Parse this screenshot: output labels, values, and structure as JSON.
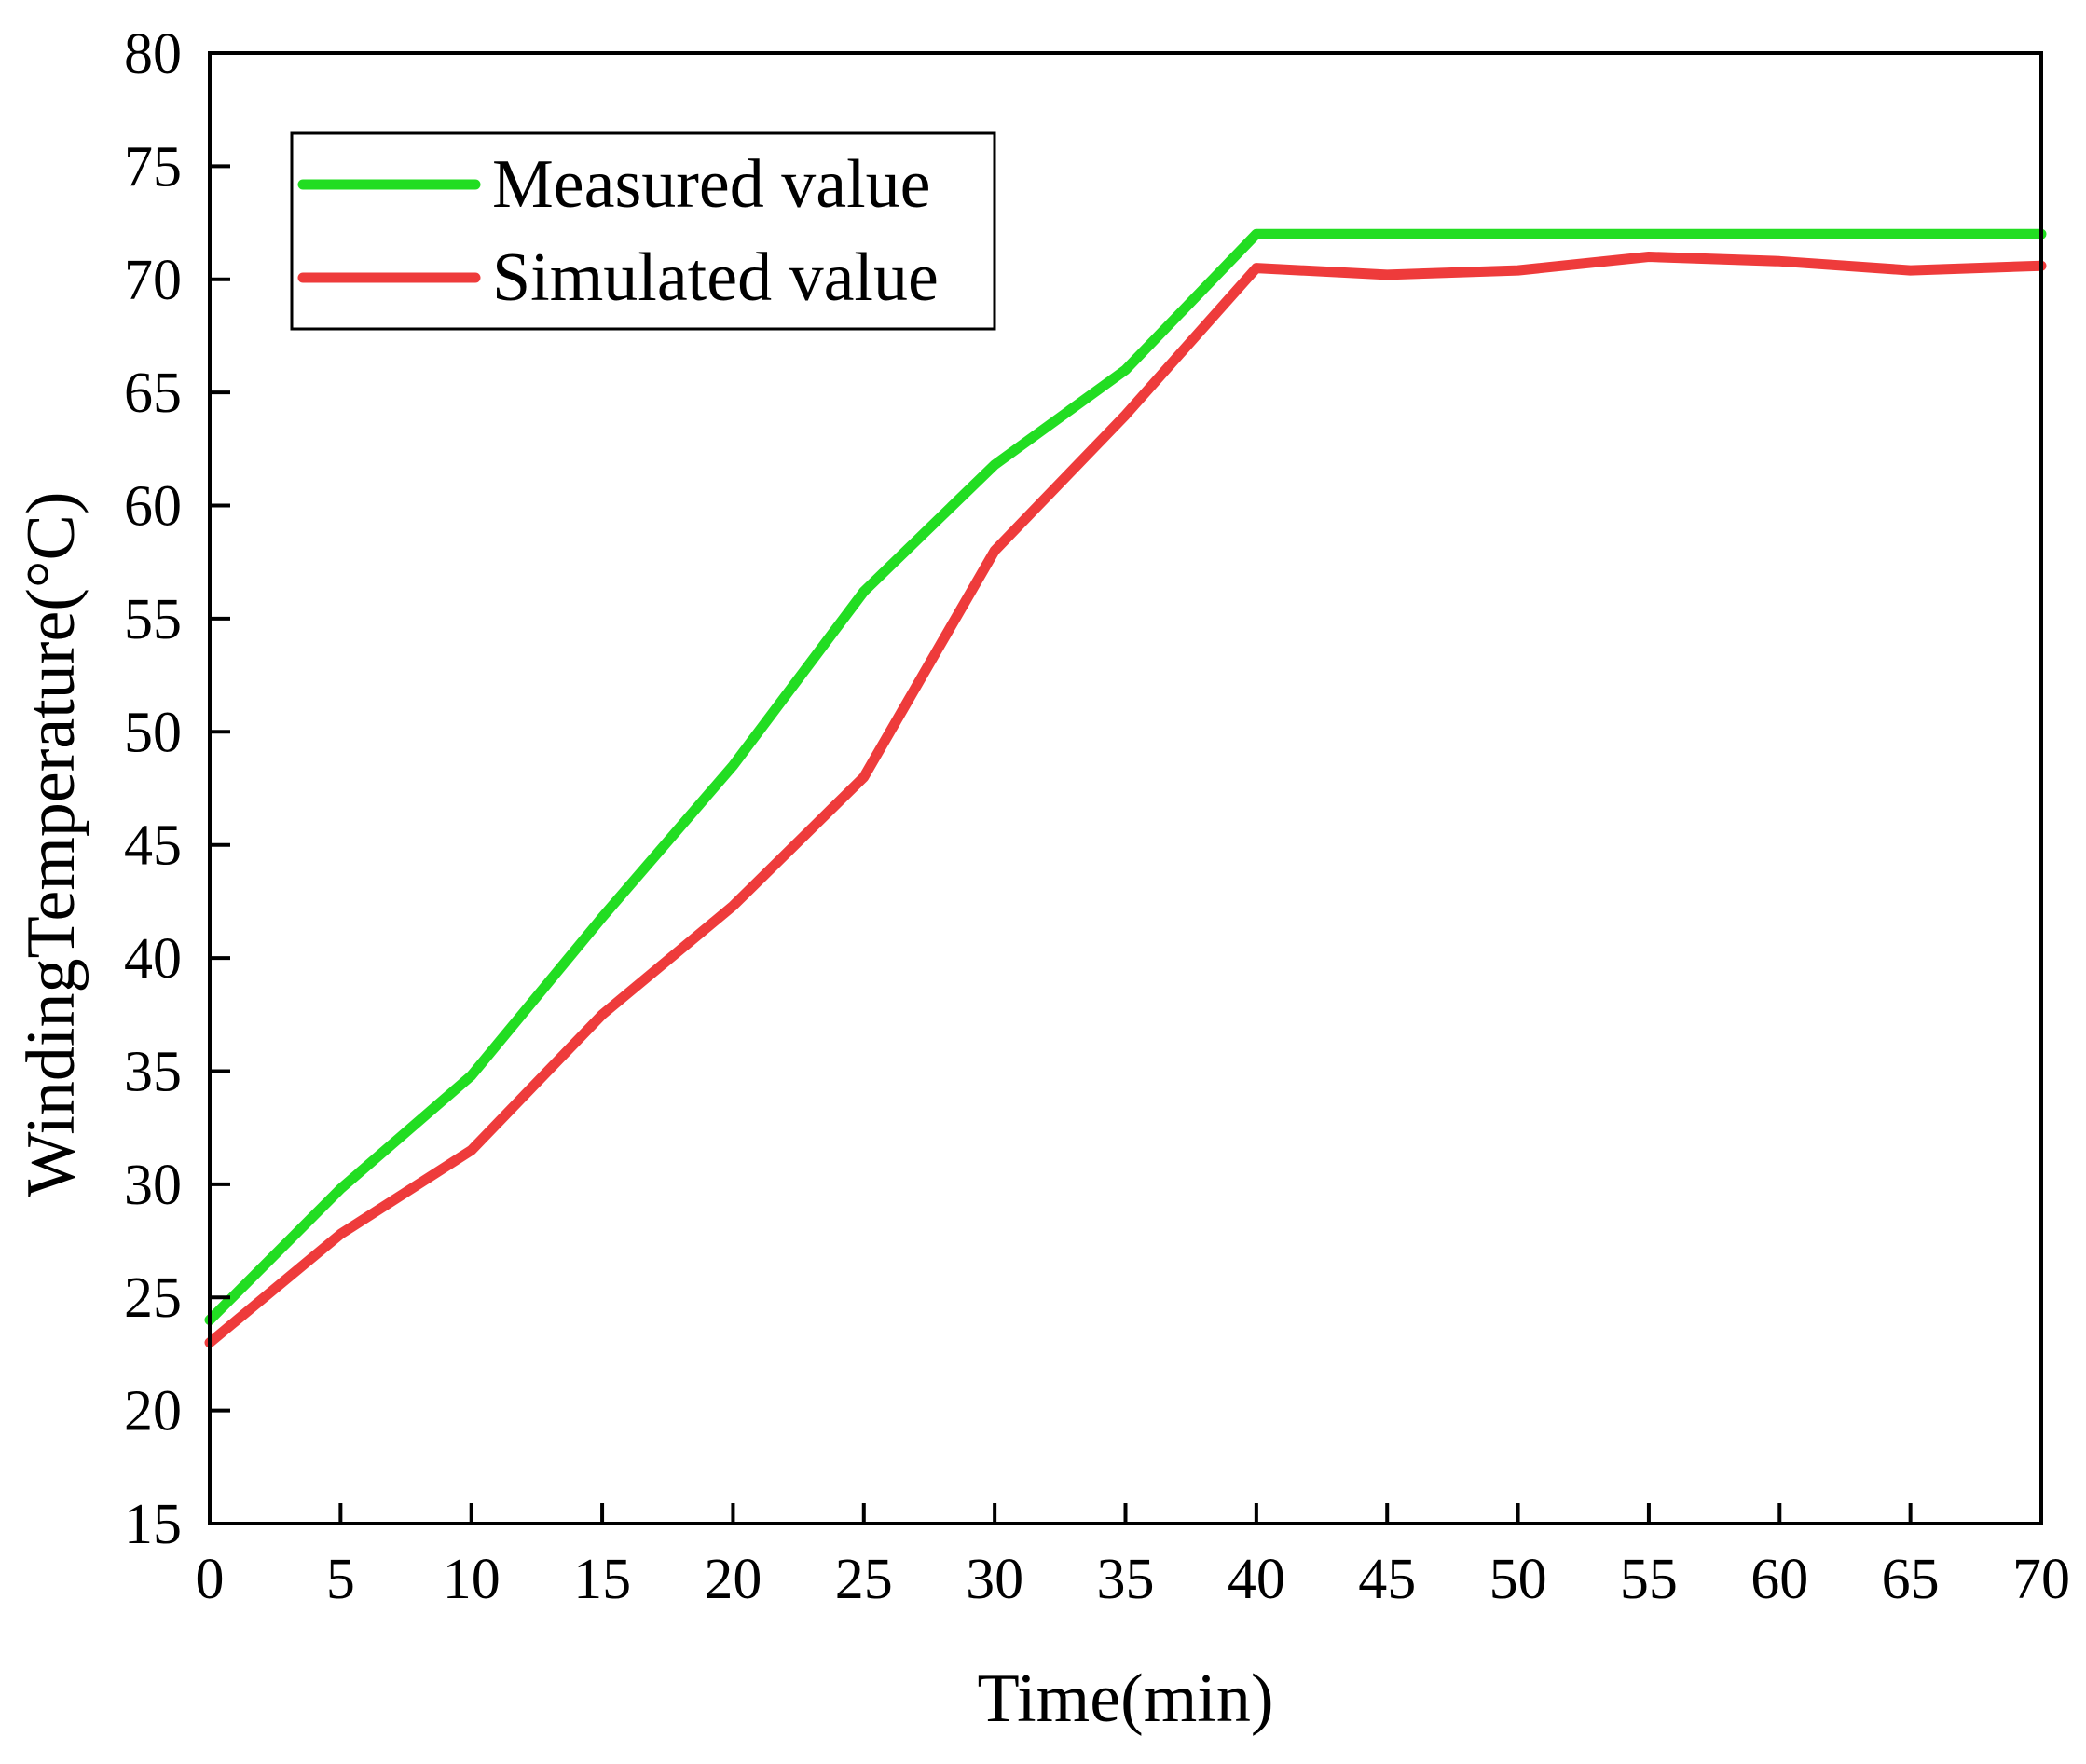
{
  "chart_data": {
    "type": "line",
    "title": "",
    "xlabel": "Time(min)",
    "ylabel": "WindingTemperature(°C)",
    "xlim": [
      0,
      70
    ],
    "ylim": [
      15,
      80
    ],
    "xticks": [
      "0",
      "5",
      "10",
      "15",
      "20",
      "25",
      "30",
      "35",
      "40",
      "45",
      "50",
      "55",
      "60",
      "65",
      "70"
    ],
    "yticks": [
      "15",
      "20",
      "25",
      "30",
      "35",
      "40",
      "45",
      "50",
      "55",
      "60",
      "65",
      "70",
      "75",
      "80"
    ],
    "grid": false,
    "legend_position": "top-left",
    "series": [
      {
        "name": "Measured value",
        "color": "#22dd22",
        "x": [
          0,
          5,
          10,
          15,
          20,
          25,
          30,
          35,
          40,
          45,
          50,
          55,
          60,
          65,
          70
        ],
        "y": [
          24,
          29.8,
          34.8,
          41.8,
          48.5,
          56.2,
          61.8,
          66,
          72,
          72,
          72,
          72,
          72,
          72,
          72
        ]
      },
      {
        "name": "Simulated value",
        "color": "#ee3b3b",
        "x": [
          0,
          5,
          10,
          15,
          20,
          25,
          30,
          35,
          40,
          45,
          50,
          55,
          60,
          65,
          70
        ],
        "y": [
          23,
          27.8,
          31.5,
          37.5,
          42.3,
          48,
          58,
          64,
          70.5,
          70.2,
          70.4,
          71,
          70.8,
          70.4,
          70.6
        ]
      }
    ]
  }
}
